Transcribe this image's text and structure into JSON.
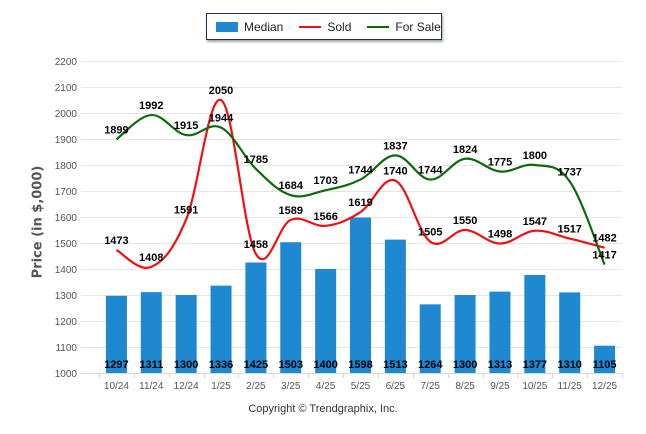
{
  "chart_data": {
    "type": "bar",
    "title": "",
    "xlabel": "",
    "ylabel": "Price (in $,000)",
    "ylim": [
      1000,
      2200
    ],
    "yticks": [
      1000,
      1100,
      1200,
      1300,
      1400,
      1500,
      1600,
      1700,
      1800,
      1900,
      2000,
      2100,
      2200
    ],
    "grid": true,
    "legend_position": "top-center",
    "categories": [
      "10/24",
      "11/24",
      "12/24",
      "1/25",
      "2/25",
      "3/25",
      "4/25",
      "5/25",
      "6/25",
      "7/25",
      "8/25",
      "9/25",
      "10/25",
      "11/25",
      "12/25"
    ],
    "series": [
      {
        "name": "Median",
        "type": "bar",
        "color": "#1e88d0",
        "values": [
          1297,
          1311,
          1300,
          1336,
          1425,
          1503,
          1400,
          1598,
          1513,
          1264,
          1300,
          1313,
          1377,
          1310,
          1105
        ]
      },
      {
        "name": "Sold",
        "type": "line",
        "color": "#ee1111",
        "values": [
          1473,
          1408,
          1591,
          2050,
          1458,
          1589,
          1566,
          1619,
          1740,
          1505,
          1550,
          1498,
          1547,
          1517,
          1482
        ]
      },
      {
        "name": "For Sale",
        "type": "line",
        "color": "#0b6b0b",
        "values": [
          1899,
          1992,
          1915,
          1944,
          1785,
          1684,
          1703,
          1744,
          1837,
          1744,
          1824,
          1775,
          1800,
          1737,
          1417
        ]
      }
    ]
  },
  "legend": {
    "items": [
      {
        "label": "Median",
        "color": "#1e88d0",
        "kind": "box"
      },
      {
        "label": "Sold",
        "color": "#ee1111",
        "kind": "line"
      },
      {
        "label": "For Sale",
        "color": "#0b6b0b",
        "kind": "line"
      }
    ]
  },
  "footer": {
    "copyright": "Copyright © Trendgraphix, Inc."
  }
}
